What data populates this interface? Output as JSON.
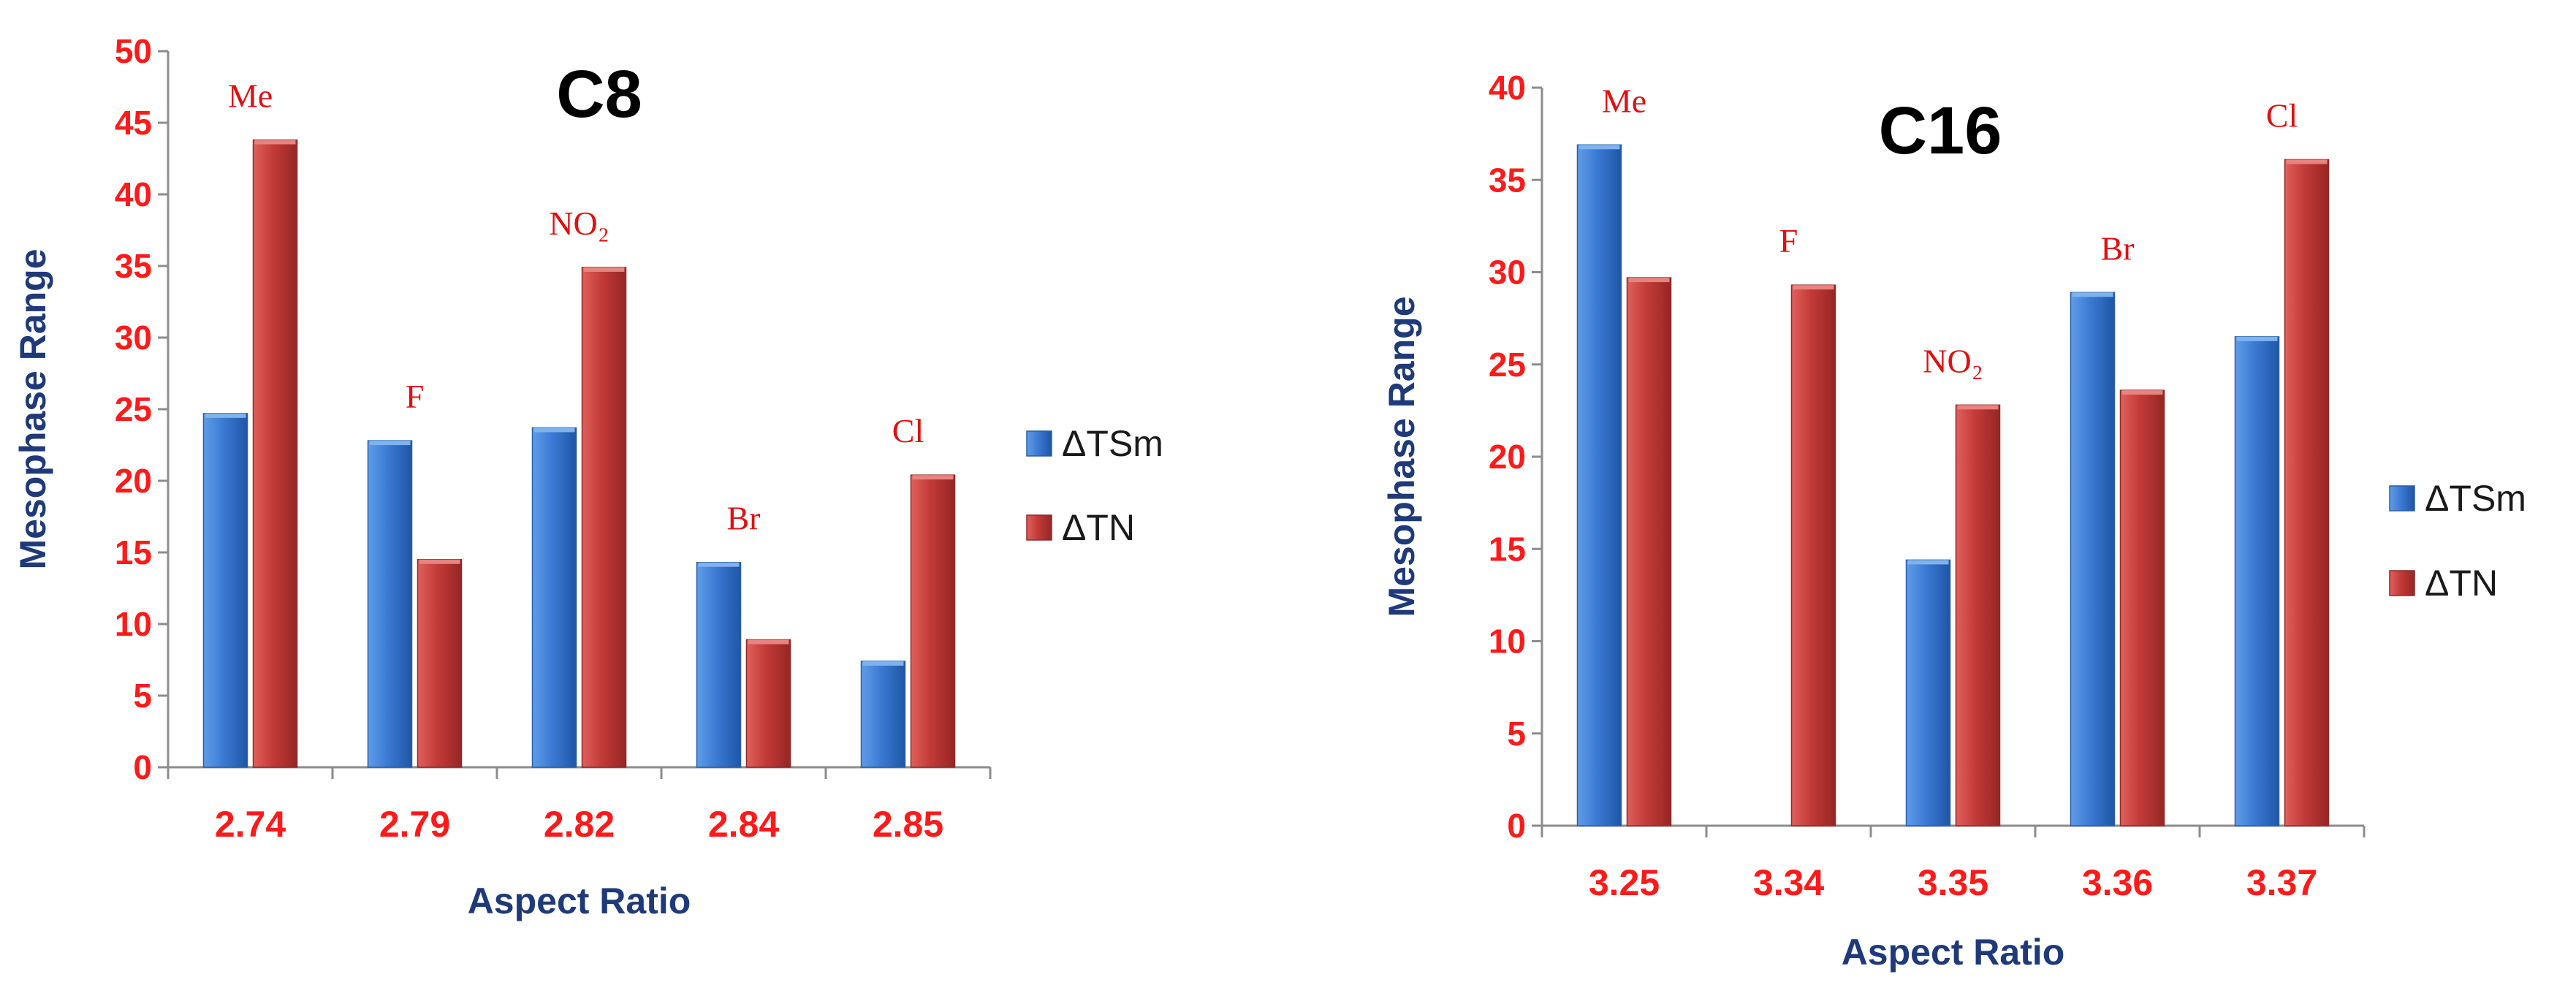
{
  "chart_data": [
    {
      "type": "bar",
      "title": "C8",
      "xlabel": "Aspect Ratio",
      "ylabel": "Mesophase Range",
      "categories": [
        "2.74",
        "2.79",
        "2.82",
        "2.84",
        "2.85"
      ],
      "ylim": [
        0,
        50
      ],
      "yticks": [
        0,
        5,
        10,
        15,
        20,
        25,
        30,
        35,
        40,
        45,
        50
      ],
      "grid": false,
      "legend_position": "right",
      "series": [
        {
          "name": "ΔTSm",
          "color": "#3a78d0",
          "values": [
            24.7,
            22.8,
            23.7,
            14.3,
            7.4
          ]
        },
        {
          "name": "ΔTN",
          "color": "#c0393b",
          "values": [
            43.8,
            14.5,
            34.9,
            8.9,
            20.4
          ]
        }
      ],
      "annotations": [
        "Me",
        "F",
        "NO₂",
        "Br",
        "Cl"
      ]
    },
    {
      "type": "bar",
      "title": "C16",
      "xlabel": "Aspect Ratio",
      "ylabel": "Mesophase Range",
      "categories": [
        "3.25",
        "3.34",
        "3.35",
        "3.36",
        "3.37"
      ],
      "ylim": [
        0,
        40
      ],
      "yticks": [
        0,
        5,
        10,
        15,
        20,
        25,
        30,
        35,
        40
      ],
      "grid": false,
      "legend_position": "right",
      "series": [
        {
          "name": "ΔTSm",
          "color": "#3a78d0",
          "values": [
            36.9,
            0,
            14.4,
            28.9,
            26.5
          ]
        },
        {
          "name": "ΔTN",
          "color": "#c0393b",
          "values": [
            29.7,
            29.3,
            22.8,
            23.6,
            36.1
          ]
        }
      ],
      "annotations": [
        "Me",
        "F",
        "NO₂",
        "Br",
        "Cl"
      ]
    }
  ]
}
